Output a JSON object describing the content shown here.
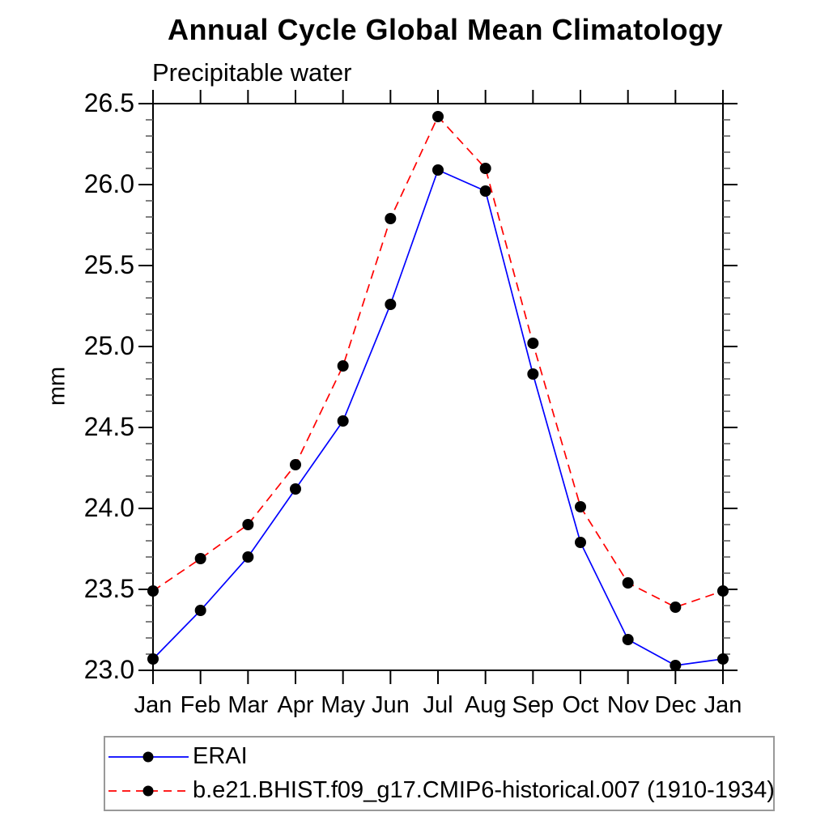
{
  "title": "Annual Cycle Global Mean Climatology",
  "subtitle": "Precipitable water",
  "ylabel": "mm",
  "legend": {
    "entries": [
      {
        "label": "ERAI",
        "color": "#0000ff",
        "style": "solid",
        "marker_color": "#000000"
      },
      {
        "label": "b.e21.BHIST.f09_g17.CMIP6-historical.007 (1910-1934)",
        "color": "#ff0000",
        "style": "dashed",
        "marker_color": "#000000"
      }
    ],
    "position": "bottom-left-box"
  },
  "chart_data": {
    "type": "line",
    "title": "Annual Cycle Global Mean Climatology",
    "subtitle": "Precipitable water",
    "xlabel": "",
    "ylabel": "mm",
    "categories": [
      "Jan",
      "Feb",
      "Mar",
      "Apr",
      "May",
      "Jun",
      "Jul",
      "Aug",
      "Sep",
      "Oct",
      "Nov",
      "Dec",
      "Jan"
    ],
    "series": [
      {
        "name": "ERAI",
        "color": "#0000ff",
        "line_style": "solid",
        "marker": "circle",
        "marker_color": "#000000",
        "values": [
          23.07,
          23.37,
          23.7,
          24.12,
          24.54,
          25.26,
          26.09,
          25.96,
          24.83,
          23.79,
          23.19,
          23.03,
          23.07
        ]
      },
      {
        "name": "b.e21.BHIST.f09_g17.CMIP6-historical.007 (1910-1934)",
        "color": "#ff0000",
        "line_style": "dashed",
        "marker": "circle",
        "marker_color": "#000000",
        "values": [
          23.49,
          23.69,
          23.9,
          24.27,
          24.88,
          25.79,
          26.42,
          26.1,
          25.02,
          24.01,
          23.54,
          23.39,
          23.49
        ]
      }
    ],
    "ylim": [
      23.0,
      26.5
    ],
    "ytick_step": 0.5,
    "yticks": [
      23.0,
      23.5,
      24.0,
      24.5,
      25.0,
      25.5,
      26.0,
      26.5
    ],
    "y_minor_step": 0.1,
    "grid": false,
    "legend_position": "bottom-left-box"
  }
}
